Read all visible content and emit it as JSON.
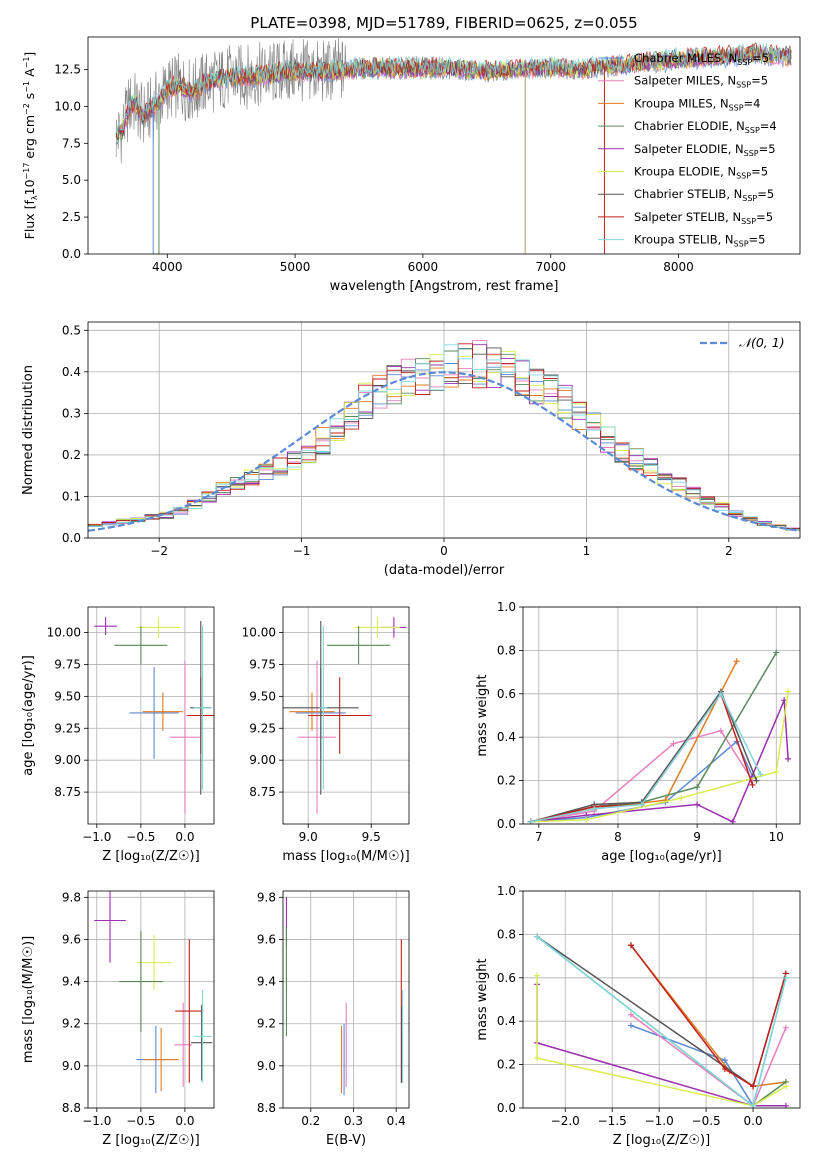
{
  "figure_title": "PLATE=0398, MJD=51789, FIBERID=0625, z=0.055",
  "ssp_legend": [
    {
      "name": "Chabrier MILES, N",
      "sub": "SSP",
      "tail": "=5",
      "color": "#5b8bd6"
    },
    {
      "name": "Salpeter MILES, N",
      "sub": "SSP",
      "tail": "=5",
      "color": "#e87fbf"
    },
    {
      "name": "Kroupa MILES, N",
      "sub": "SSP",
      "tail": "=4",
      "color": "#e07b20"
    },
    {
      "name": "Chabrier ELODIE, N",
      "sub": "SSP",
      "tail": "=4",
      "color": "#5a8a5a"
    },
    {
      "name": "Salpeter ELODIE, N",
      "sub": "SSP",
      "tail": "=5",
      "color": "#9b30b0"
    },
    {
      "name": "Kroupa ELODIE, N",
      "sub": "SSP",
      "tail": "=5",
      "color": "#d9ec50"
    },
    {
      "name": "Chabrier STELIB, N",
      "sub": "SSP",
      "tail": "=5",
      "color": "#555555"
    },
    {
      "name": "Salpeter STELIB, N",
      "sub": "SSP",
      "tail": "=5",
      "color": "#c0201e"
    },
    {
      "name": "Kroupa STELIB, N",
      "sub": "SSP",
      "tail": "=5",
      "color": "#7fd8dc"
    }
  ],
  "chart_data": [
    {
      "id": "spectrum",
      "type": "line",
      "xlabel": "wavelength [Angstrom, rest frame]",
      "ylabel_main": "Flux [f",
      "ylabel_sub": "λ",
      "ylabel_rest": "10",
      "ylabel_exp": "−17",
      "ylabel_units": " erg cm",
      "ylabel_units_exp": "−2",
      "ylabel_units2": " s",
      "ylabel_units2_exp": "−1",
      "ylabel_units3": " A",
      "ylabel_units3_exp": "−1",
      "ylabel_end": "]",
      "xlim": [
        3380,
        8950
      ],
      "ylim": [
        0,
        14.7
      ],
      "xticks": [
        4000,
        5000,
        6000,
        7000,
        8000
      ],
      "yticks": [
        0.0,
        2.5,
        5.0,
        7.5,
        10.0,
        12.5
      ],
      "ytick_labels": [
        "0.0",
        "2.5",
        "5.0",
        "7.5",
        "10.0",
        "12.5"
      ],
      "data_color": "#808080",
      "model_envelope": {
        "x": [
          3600,
          3650,
          3700,
          3750,
          3800,
          3850,
          3900,
          3950,
          4000,
          4100,
          4200,
          4300,
          4400,
          4500,
          4600,
          4800,
          5000,
          5200,
          5400,
          5600,
          5800,
          6000,
          6200,
          6400,
          6600,
          6800,
          7000,
          7200,
          7400,
          7600,
          7800,
          8000,
          8200,
          8400,
          8600,
          8800
        ],
        "y": [
          8.0,
          8.4,
          10.0,
          10.2,
          9.4,
          9.6,
          10.1,
          10.5,
          11.2,
          11.4,
          11.0,
          11.6,
          11.8,
          12.0,
          12.0,
          12.2,
          12.4,
          12.3,
          12.5,
          12.6,
          12.6,
          12.6,
          12.6,
          12.4,
          12.4,
          12.6,
          12.6,
          12.5,
          12.7,
          12.8,
          13.0,
          13.2,
          13.3,
          13.4,
          13.6,
          13.4
        ]
      },
      "spikes_down": [
        3890,
        3935,
        6800,
        7420
      ],
      "legend_position": "right"
    },
    {
      "id": "residual_hist",
      "type": "histogram",
      "xlabel": "(data-model)/error",
      "ylabel": "Normed distribution",
      "xlim": [
        -2.5,
        2.5
      ],
      "ylim": [
        0,
        0.52
      ],
      "xticks": [
        -2,
        -1,
        0,
        1,
        2
      ],
      "xtick_labels": [
        "−2",
        "−1",
        "0",
        "1",
        "2"
      ],
      "yticks": [
        0.0,
        0.1,
        0.2,
        0.3,
        0.4,
        0.5
      ],
      "ytick_labels": [
        "0.0",
        "0.1",
        "0.2",
        "0.3",
        "0.4",
        "0.5"
      ],
      "grid": true,
      "legend": {
        "label_prefix": "𝒩",
        "label_suffix": "(0, 1)",
        "color": "#5b8bd6",
        "position": "top-right"
      },
      "bin_width": 0.1,
      "bin_start": -2.5,
      "heights": [
        0.03,
        0.035,
        0.04,
        0.045,
        0.05,
        0.055,
        0.065,
        0.08,
        0.1,
        0.12,
        0.13,
        0.145,
        0.16,
        0.175,
        0.19,
        0.21,
        0.235,
        0.265,
        0.3,
        0.33,
        0.35,
        0.37,
        0.38,
        0.39,
        0.4,
        0.41,
        0.42,
        0.42,
        0.41,
        0.4,
        0.39,
        0.37,
        0.35,
        0.33,
        0.3,
        0.27,
        0.24,
        0.21,
        0.19,
        0.17,
        0.15,
        0.13,
        0.11,
        0.09,
        0.075,
        0.06,
        0.045,
        0.035,
        0.028,
        0.022
      ]
    },
    {
      "id": "age_vs_Z",
      "type": "errorbar",
      "xlabel": "Z [log₁₀(Z/Z☉)]",
      "ylabel": "age  [log₁₀(age/yr)]",
      "xlim": [
        -1.1,
        0.33
      ],
      "ylim": [
        8.5,
        10.2
      ],
      "xticks": [
        -1.0,
        -0.5,
        0.0
      ],
      "xtick_labels": [
        "−1.0",
        "−0.5",
        "0.0"
      ],
      "yticks": [
        8.75,
        9.0,
        9.25,
        9.5,
        9.75,
        10.0
      ],
      "ytick_labels": [
        "8.75",
        "9.00",
        "9.25",
        "9.50",
        "9.75",
        "10.00"
      ],
      "points": [
        {
          "x": -0.9,
          "y": 10.05,
          "xerr": 0.13,
          "yerr": 0.07,
          "series": 4
        },
        {
          "x": -0.3,
          "y": 10.04,
          "xerr": 0.25,
          "yerr": 0.08,
          "series": 5
        },
        {
          "x": -0.5,
          "y": 9.9,
          "xerr": 0.3,
          "yerr": 0.15,
          "series": 3
        },
        {
          "x": -0.35,
          "y": 9.37,
          "xerr": 0.28,
          "yerr": 0.36,
          "series": 0
        },
        {
          "x": -0.25,
          "y": 9.38,
          "xerr": 0.23,
          "yerr": 0.15,
          "series": 2
        },
        {
          "x": 0.0,
          "y": 9.18,
          "xerr": 0.17,
          "yerr": 0.6,
          "series": 1
        },
        {
          "x": 0.18,
          "y": 9.35,
          "xerr": 0.16,
          "yerr": 0.3,
          "series": 7
        },
        {
          "x": 0.18,
          "y": 9.41,
          "xerr": 0.12,
          "yerr": 0.68,
          "series": 6
        },
        {
          "x": 0.2,
          "y": 9.41,
          "xerr": 0.1,
          "yerr": 0.64,
          "series": 8
        }
      ]
    },
    {
      "id": "age_vs_mass",
      "type": "errorbar",
      "xlabel": "mass [log₁₀(M/M☉)]",
      "ylabel": "",
      "xlim": [
        8.8,
        9.8
      ],
      "ylim": [
        8.5,
        10.2
      ],
      "xticks": [
        9.0,
        9.5
      ],
      "xtick_labels": [
        "9.0",
        "9.5"
      ],
      "yticks": [
        8.75,
        9.0,
        9.25,
        9.5,
        9.75,
        10.0
      ],
      "ytick_labels": [
        "8.75",
        "9.00",
        "9.25",
        "9.50",
        "9.75",
        "10.00"
      ],
      "points": [
        {
          "x": 9.68,
          "y": 10.04,
          "xerr": 0.1,
          "yerr": 0.08,
          "series": 4
        },
        {
          "x": 9.55,
          "y": 10.04,
          "xerr": 0.18,
          "yerr": 0.08,
          "series": 5
        },
        {
          "x": 9.4,
          "y": 9.9,
          "xerr": 0.25,
          "yerr": 0.15,
          "series": 3
        },
        {
          "x": 9.1,
          "y": 9.37,
          "xerr": 0.2,
          "yerr": 0.36,
          "series": 0
        },
        {
          "x": 9.03,
          "y": 9.38,
          "xerr": 0.18,
          "yerr": 0.15,
          "series": 2
        },
        {
          "x": 9.07,
          "y": 9.18,
          "xerr": 0.15,
          "yerr": 0.6,
          "series": 1
        },
        {
          "x": 9.25,
          "y": 9.35,
          "xerr": 0.25,
          "yerr": 0.3,
          "series": 7
        },
        {
          "x": 9.1,
          "y": 9.41,
          "xerr": 0.3,
          "yerr": 0.68,
          "series": 6
        },
        {
          "x": 9.12,
          "y": 9.41,
          "xerr": 0.03,
          "yerr": 0.64,
          "series": 8
        }
      ]
    },
    {
      "id": "weight_vs_age",
      "type": "line",
      "xlabel": "age  [log₁₀(age/yr)]",
      "ylabel": "mass weight",
      "xlim": [
        6.8,
        10.3
      ],
      "ylim": [
        0,
        1.0
      ],
      "xticks": [
        7,
        8,
        9,
        10
      ],
      "xtick_labels": [
        "7",
        "8",
        "9",
        "10"
      ],
      "yticks": [
        0.0,
        0.2,
        0.4,
        0.6,
        0.8,
        1.0
      ],
      "ytick_labels": [
        "0.0",
        "0.2",
        "0.4",
        "0.6",
        "0.8",
        "1.0"
      ],
      "series": [
        {
          "series": 0,
          "x": [
            6.9,
            7.6,
            8.6,
            9.5,
            9.7
          ],
          "y": [
            0.01,
            0.03,
            0.1,
            0.38,
            0.22
          ]
        },
        {
          "series": 1,
          "x": [
            6.9,
            7.7,
            8.7,
            9.3,
            9.7
          ],
          "y": [
            0.01,
            0.06,
            0.37,
            0.43,
            0.2
          ]
        },
        {
          "series": 2,
          "x": [
            6.9,
            7.7,
            8.6,
            9.5
          ],
          "y": [
            0.01,
            0.07,
            0.11,
            0.75
          ]
        },
        {
          "series": 3,
          "x": [
            6.9,
            7.7,
            8.3,
            9.0,
            10.0
          ],
          "y": [
            0.01,
            0.08,
            0.1,
            0.17,
            0.79
          ]
        },
        {
          "series": 4,
          "x": [
            6.9,
            7.6,
            9.0,
            9.45,
            10.1,
            10.15
          ],
          "y": [
            0.01,
            0.04,
            0.09,
            0.01,
            0.57,
            0.3
          ]
        },
        {
          "series": 5,
          "x": [
            6.9,
            7.6,
            8.8,
            10.0,
            10.15
          ],
          "y": [
            0.01,
            0.02,
            0.12,
            0.24,
            0.61
          ]
        },
        {
          "series": 6,
          "x": [
            6.9,
            7.7,
            8.3,
            9.3,
            9.75
          ],
          "y": [
            0.01,
            0.09,
            0.1,
            0.61,
            0.2
          ]
        },
        {
          "series": 7,
          "x": [
            6.9,
            7.7,
            8.3,
            9.3,
            9.7
          ],
          "y": [
            0.01,
            0.08,
            0.09,
            0.6,
            0.18
          ]
        },
        {
          "series": 8,
          "x": [
            6.9,
            7.7,
            8.3,
            9.3,
            9.8
          ],
          "y": [
            0.01,
            0.07,
            0.09,
            0.6,
            0.23
          ]
        }
      ]
    },
    {
      "id": "mass_vs_Z",
      "type": "errorbar",
      "xlabel": "Z [log₁₀(Z/Z☉)]",
      "ylabel": "mass [log₁₀(M/M☉)]",
      "xlim": [
        -1.1,
        0.33
      ],
      "ylim": [
        8.8,
        9.83
      ],
      "xticks": [
        -1.0,
        -0.5,
        0.0
      ],
      "xtick_labels": [
        "−1.0",
        "−0.5",
        "0.0"
      ],
      "yticks": [
        8.8,
        9.0,
        9.2,
        9.4,
        9.6,
        9.8
      ],
      "ytick_labels": [
        "8.8",
        "9.0",
        "9.2",
        "9.4",
        "9.6",
        "9.8"
      ],
      "points": [
        {
          "x": -0.85,
          "y": 9.69,
          "xerr": 0.18,
          "yerr": 0.2,
          "series": 4
        },
        {
          "x": -0.35,
          "y": 9.49,
          "xerr": 0.2,
          "yerr": 0.13,
          "series": 5
        },
        {
          "x": -0.5,
          "y": 9.4,
          "xerr": 0.25,
          "yerr": 0.24,
          "series": 3
        },
        {
          "x": -0.33,
          "y": 9.03,
          "xerr": 0.22,
          "yerr": 0.16,
          "series": 0
        },
        {
          "x": -0.27,
          "y": 9.03,
          "xerr": 0.2,
          "yerr": 0.15,
          "series": 2
        },
        {
          "x": -0.02,
          "y": 9.1,
          "xerr": 0.1,
          "yerr": 0.2,
          "series": 1
        },
        {
          "x": 0.05,
          "y": 9.26,
          "xerr": 0.16,
          "yerr": 0.34,
          "series": 7
        },
        {
          "x": 0.19,
          "y": 9.11,
          "xerr": 0.12,
          "yerr": 0.18,
          "series": 6
        },
        {
          "x": 0.2,
          "y": 9.14,
          "xerr": 0.1,
          "yerr": 0.22,
          "series": 8
        }
      ]
    },
    {
      "id": "mass_vs_EBV",
      "type": "errorbar",
      "xlabel": "E(B-V)",
      "ylabel": "",
      "xlim": [
        0.135,
        0.43
      ],
      "ylim": [
        8.8,
        9.83
      ],
      "xticks": [
        0.2,
        0.3,
        0.4
      ],
      "xtick_labels": [
        "0.2",
        "0.3",
        "0.4"
      ],
      "yticks": [
        8.8,
        9.0,
        9.2,
        9.4,
        9.6,
        9.8
      ],
      "ytick_labels": [
        "8.8",
        "9.0",
        "9.2",
        "9.4",
        "9.6",
        "9.8"
      ],
      "points": [
        {
          "x": 0.143,
          "y": 9.68,
          "xerr": 0,
          "yerr": 0.12,
          "series": 4
        },
        {
          "x": 0.143,
          "y": 9.49,
          "xerr": 0,
          "yerr": 0.13,
          "series": 5
        },
        {
          "x": 0.143,
          "y": 9.4,
          "xerr": 0,
          "yerr": 0.26,
          "series": 3
        },
        {
          "x": 0.278,
          "y": 9.03,
          "xerr": 0,
          "yerr": 0.17,
          "series": 0
        },
        {
          "x": 0.272,
          "y": 9.03,
          "xerr": 0,
          "yerr": 0.16,
          "series": 2
        },
        {
          "x": 0.283,
          "y": 9.1,
          "xerr": 0,
          "yerr": 0.2,
          "series": 1
        },
        {
          "x": 0.412,
          "y": 9.26,
          "xerr": 0,
          "yerr": 0.34,
          "series": 7
        },
        {
          "x": 0.413,
          "y": 9.1,
          "xerr": 0,
          "yerr": 0.18,
          "series": 6
        },
        {
          "x": 0.415,
          "y": 9.14,
          "xerr": 0,
          "yerr": 0.22,
          "series": 8
        }
      ]
    },
    {
      "id": "weight_vs_Z",
      "type": "line",
      "xlabel": "Z [log₁₀(Z/Z☉)]",
      "ylabel": "mass weight",
      "xlim": [
        -2.45,
        0.5
      ],
      "ylim": [
        0,
        1.0
      ],
      "xticks": [
        -2.0,
        -1.5,
        -1.0,
        -0.5,
        0.0
      ],
      "xtick_labels": [
        "−2.0",
        "−1.5",
        "−1.0",
        "−0.5",
        "0.0"
      ],
      "yticks": [
        0.0,
        0.2,
        0.4,
        0.6,
        0.8,
        1.0
      ],
      "ytick_labels": [
        "0.0",
        "0.2",
        "0.4",
        "0.6",
        "0.8",
        "1.0"
      ],
      "series": [
        {
          "series": 0,
          "x": [
            -1.3,
            -0.3,
            0.0,
            0.35
          ],
          "y": [
            0.38,
            0.22,
            0.01,
            0.6
          ]
        },
        {
          "series": 1,
          "x": [
            -1.3,
            0.0,
            0.35
          ],
          "y": [
            0.43,
            0.01,
            0.37
          ]
        },
        {
          "series": 2,
          "x": [
            -1.3,
            -0.25,
            0.0,
            0.35
          ],
          "y": [
            0.75,
            0.17,
            0.1,
            0.12
          ]
        },
        {
          "series": 3,
          "x": [
            -2.3,
            0.0,
            0.35
          ],
          "y": [
            0.79,
            0.01,
            0.12
          ]
        },
        {
          "series": 4,
          "x": [
            -2.3,
            -2.3,
            0.0,
            0.35
          ],
          "y": [
            0.57,
            0.3,
            0.01,
            0.01
          ]
        },
        {
          "series": 5,
          "x": [
            -2.3,
            -2.3,
            0.0,
            0.35
          ],
          "y": [
            0.61,
            0.23,
            0.01,
            0.1
          ]
        },
        {
          "series": 6,
          "x": [
            -2.3,
            0.0,
            0.35
          ],
          "y": [
            0.79,
            0.1,
            0.62
          ]
        },
        {
          "series": 7,
          "x": [
            -1.3,
            -0.3,
            0.0,
            0.35
          ],
          "y": [
            0.75,
            0.18,
            0.1,
            0.62
          ]
        },
        {
          "series": 8,
          "x": [
            -2.3,
            0.0,
            0.35
          ],
          "y": [
            0.79,
            0.01,
            0.6
          ]
        }
      ]
    }
  ]
}
